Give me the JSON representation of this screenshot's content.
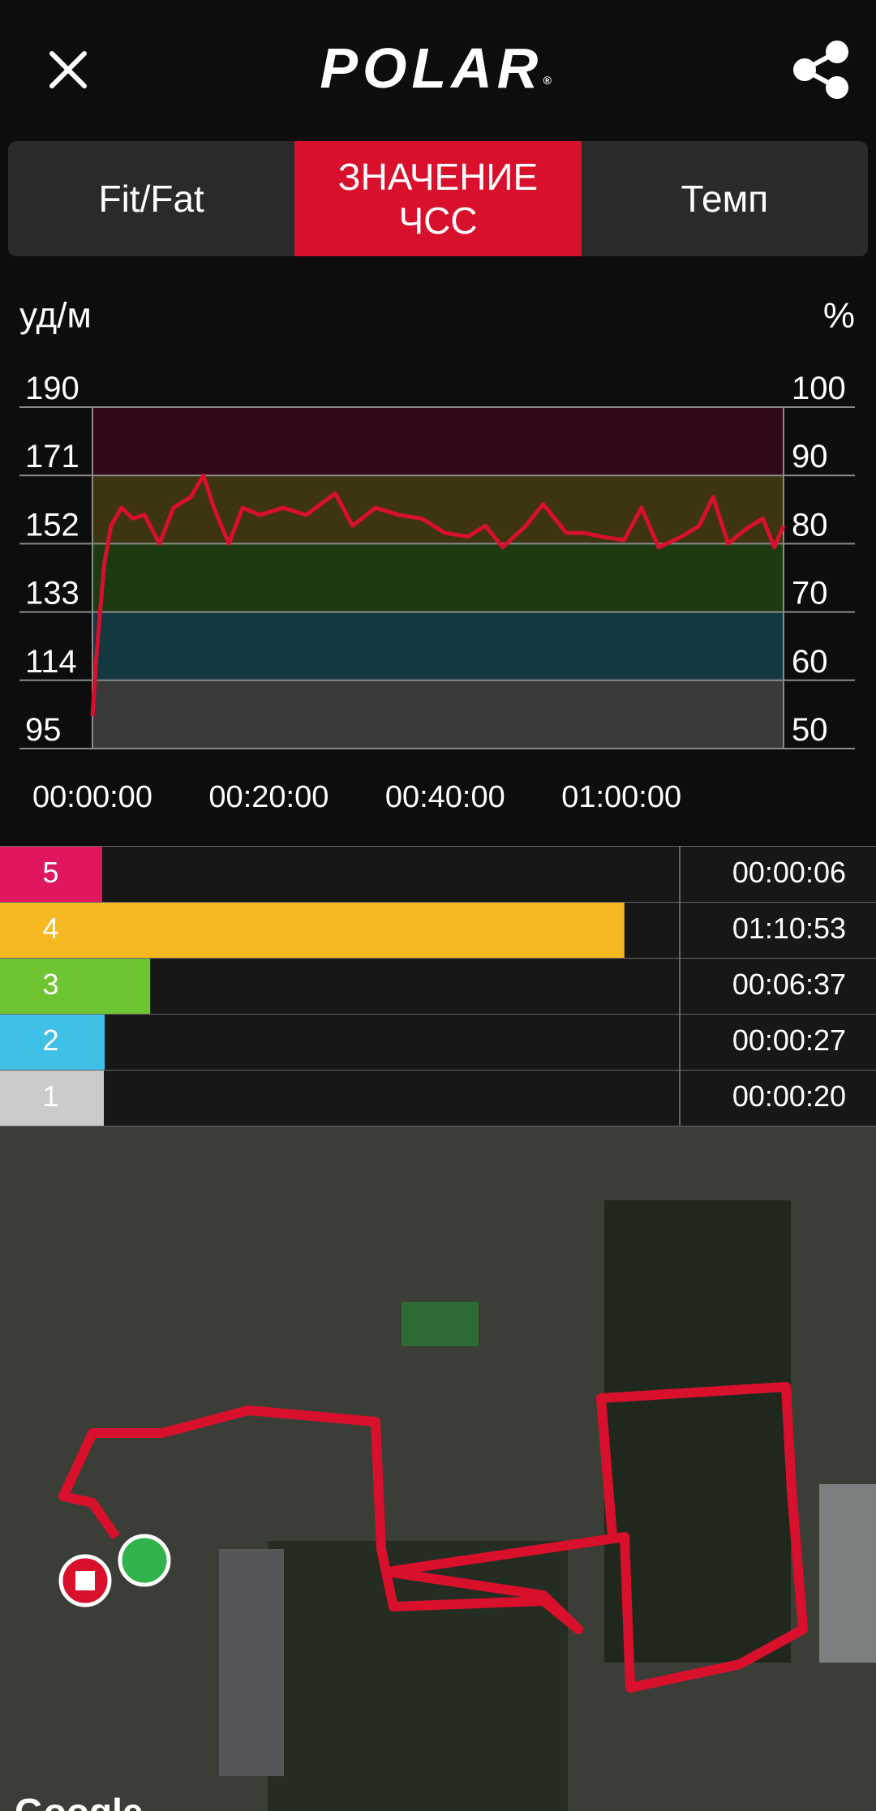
{
  "header": {
    "logo": "POLAR",
    "trademark": "®"
  },
  "tabs": [
    "Fit/Fat",
    "ЗНАЧЕНИЕ ЧСС",
    "Темп"
  ],
  "active_tab": 1,
  "chart_data": {
    "type": "line",
    "y_label": "уд/м",
    "y2_label": "%",
    "ylim": [
      95,
      190
    ],
    "yticks": [
      95,
      114,
      133,
      152,
      171,
      190
    ],
    "y2lim": [
      50,
      100
    ],
    "y2ticks": [
      50,
      60,
      70,
      80,
      90,
      100
    ],
    "xlim": [
      0,
      4703
    ],
    "xticks": [
      {
        "value": 0,
        "label": "00:00:00"
      },
      {
        "value": 1200,
        "label": "00:20:00"
      },
      {
        "value": 2400,
        "label": "00:40:00"
      },
      {
        "value": 3600,
        "label": "01:00:00"
      }
    ],
    "band_colors": [
      "#3a3a3a",
      "#133840",
      "#1e3a10",
      "#3d3410",
      "#33081a"
    ],
    "grid": true,
    "x": [
      0,
      31,
      79,
      126,
      197,
      275,
      354,
      456,
      551,
      669,
      755,
      826,
      928,
      1022,
      1140,
      1298,
      1455,
      1652,
      1770,
      1927,
      2084,
      2241,
      2399,
      2556,
      2674,
      2792,
      2949,
      3067,
      3225,
      3343,
      3460,
      3618,
      3736,
      3854,
      4011,
      4129,
      4224,
      4326,
      4444,
      4562,
      4641,
      4703
    ],
    "series": [
      {
        "color": "#d8102c",
        "values": [
          104,
          123,
          146,
          157,
          162,
          159,
          160,
          152,
          162,
          165,
          171,
          162,
          152,
          162,
          160,
          162,
          160,
          166,
          157,
          162,
          160,
          159,
          155,
          154,
          157,
          151,
          157,
          163,
          155,
          155,
          154,
          153,
          162,
          151,
          154,
          157,
          165,
          152,
          156,
          159,
          151,
          157
        ]
      }
    ]
  },
  "zones": [
    {
      "zone": 5,
      "color": "#e0175e",
      "time": {
        "value": 6,
        "label": "00:00:06"
      }
    },
    {
      "zone": 4,
      "color": "#f5b820",
      "time": {
        "value": 4253,
        "label": "01:10:53"
      }
    },
    {
      "zone": 3,
      "color": "#6ec531",
      "time": {
        "value": 397,
        "label": "00:06:37"
      }
    },
    {
      "zone": 2,
      "color": "#3fc0e6",
      "time": {
        "value": 27,
        "label": "00:00:27"
      }
    },
    {
      "zone": 1,
      "color": "#c9cbcc",
      "time": {
        "value": 20,
        "label": "00:00:20"
      }
    }
  ],
  "map": {
    "attribution": "Google"
  }
}
